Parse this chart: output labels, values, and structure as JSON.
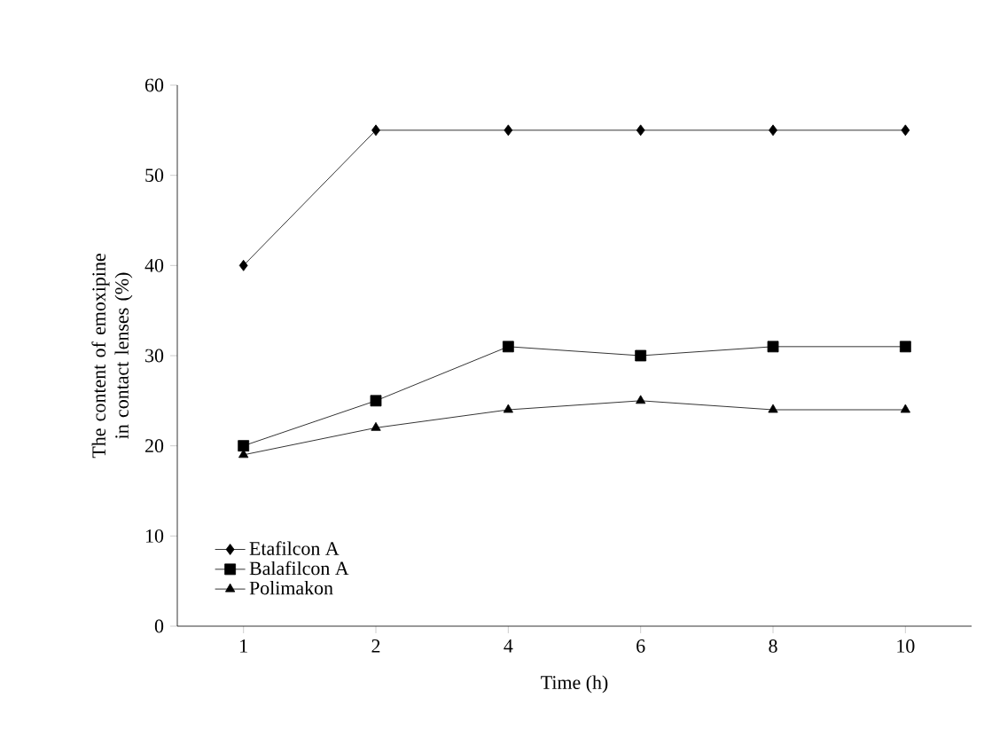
{
  "chart_data": {
    "type": "line",
    "xlabel": "Time (h)",
    "ylabel": "The content of emoxipine\nin contact lenses (%)",
    "categories": [
      "1",
      "2",
      "4",
      "6",
      "8",
      "10"
    ],
    "ylim": [
      0,
      60
    ],
    "yticks": [
      0,
      10,
      20,
      30,
      40,
      50,
      60
    ],
    "legend": "bottom left",
    "grid": false,
    "line_style": "solid",
    "series": [
      {
        "name": "Etafilcon A",
        "color": "#000000",
        "marker": "diamond",
        "values": [
          40,
          55,
          55,
          55,
          55,
          55
        ]
      },
      {
        "name": "Balafilcon A",
        "color": "#000000",
        "marker": "square",
        "values": [
          20,
          25,
          31,
          30,
          31,
          31
        ]
      },
      {
        "name": "Polimakon",
        "color": "#000000",
        "marker": "triangle",
        "values": [
          19,
          22,
          24,
          25,
          24,
          24
        ]
      }
    ]
  }
}
